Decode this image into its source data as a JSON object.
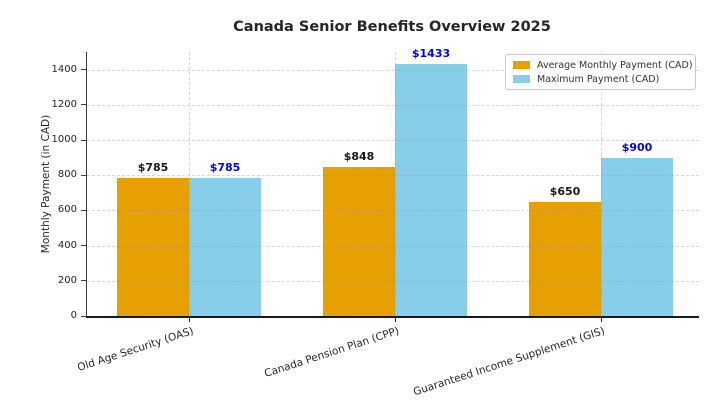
{
  "figure": {
    "title": "Canada Senior Benefits Overview 2025",
    "background": "#ffffff"
  },
  "chart_data": {
    "type": "bar",
    "title": "Canada Senior Benefits Overview 2025",
    "categories": [
      "Old Age Security (OAS)",
      "Canada Pension Plan (CPP)",
      "Guaranteed Income Supplement (GIS)"
    ],
    "series": [
      {
        "name": "Average Monthly Payment (CAD)",
        "color": "#E6A000",
        "label_color": "#1a1a1a",
        "values": [
          785,
          848,
          650
        ],
        "labels": [
          "$785",
          "$848",
          "$650"
        ]
      },
      {
        "name": "Maximum Payment (CAD)",
        "color": "#87CEEB",
        "label_color": "#0000FF",
        "values": [
          785,
          1433,
          900
        ],
        "labels": [
          "$785",
          "$1433",
          "$900"
        ]
      }
    ],
    "xlabel": "",
    "ylabel": "Monthly Payment (in CAD)",
    "yticks": [
      0,
      200,
      400,
      600,
      800,
      1000,
      1200,
      1400
    ],
    "ylim": [
      0,
      1500
    ],
    "grid": true,
    "grid_style": "dashed",
    "legend": {
      "position": "upper right",
      "entries": [
        "Average Monthly Payment (CAD)",
        "Maximum Payment (CAD)"
      ]
    }
  }
}
